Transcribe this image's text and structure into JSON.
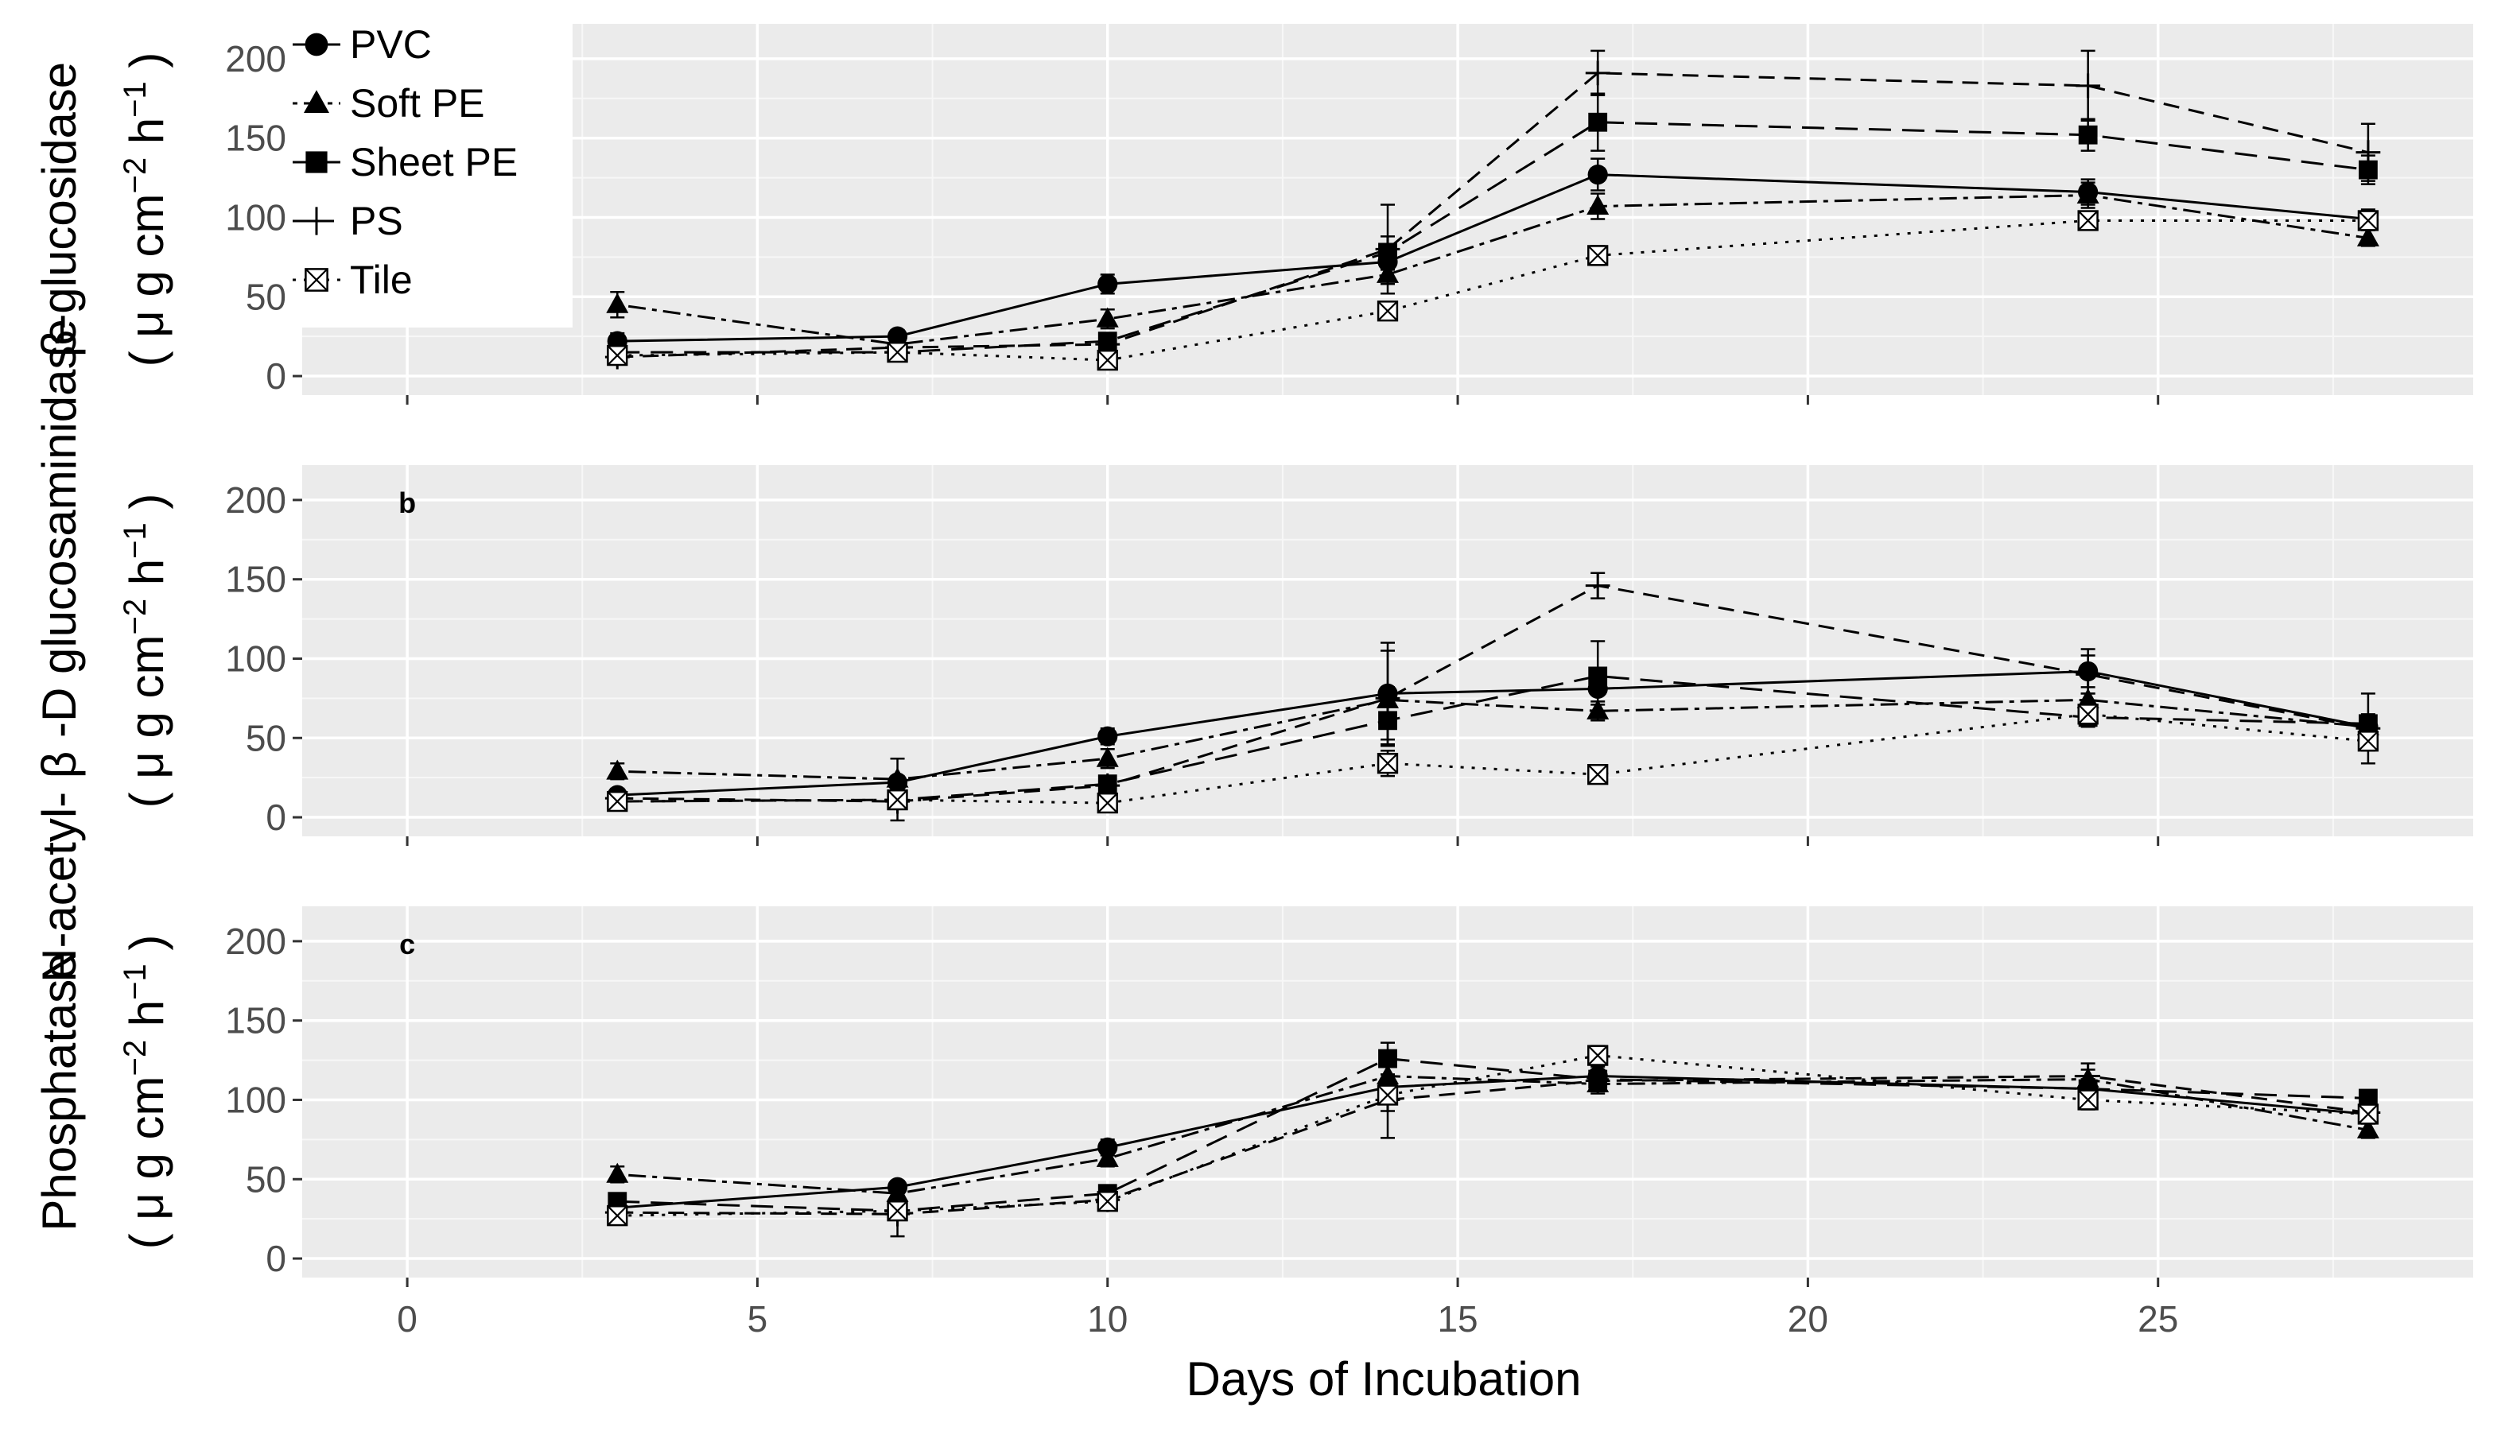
{
  "chart_data": {
    "type": "line",
    "xlabel": "Days of Incubation",
    "xlim": [
      -1.5,
      29.5
    ],
    "xticks": [
      0,
      5,
      10,
      15,
      20,
      25
    ],
    "ylim": [
      -12,
      222
    ],
    "yticks": [
      0,
      50,
      100,
      150,
      200
    ],
    "legend_position": "top-left",
    "x": [
      3,
      7,
      10,
      14,
      17,
      24,
      28
    ],
    "series_styles": [
      {
        "name": "PVC",
        "marker": "circle",
        "dash": "solid"
      },
      {
        "name": "Soft PE",
        "marker": "triangle",
        "dash": "dotted-dash"
      },
      {
        "name": "Sheet PE",
        "marker": "square",
        "dash": "long-dash"
      },
      {
        "name": "PS",
        "marker": "plus",
        "dash": "dash"
      },
      {
        "name": "Tile",
        "marker": "boxed-x",
        "dash": "dotted"
      }
    ],
    "panels": [
      {
        "ylabel_line1": "β-glucosidase",
        "ylabel_line2_prefix": "( μ g cm",
        "ylabel_sup1": "−2",
        "ylabel_mid": " h",
        "ylabel_sup2": "−1",
        "ylabel_suffix": " )",
        "tag": "",
        "series": [
          {
            "name": "PVC",
            "values": [
              22,
              25,
              58,
              72,
              127,
              116,
              99
            ],
            "err": [
              5,
              4,
              6,
              5,
              10,
              8,
              6
            ]
          },
          {
            "name": "Soft PE",
            "values": [
              45,
              20,
              36,
              64,
              107,
              114,
              87
            ],
            "err": [
              8,
              3,
              6,
              6,
              8,
              8,
              5
            ]
          },
          {
            "name": "Sheet PE",
            "values": [
              15,
              15,
              22,
              78,
              160,
              152,
              130
            ],
            "err": [
              3,
              3,
              4,
              10,
              18,
              10,
              9
            ]
          },
          {
            "name": "PS",
            "values": [
              12,
              18,
              20,
              80,
              191,
              183,
              141
            ],
            "err": [
              3,
              3,
              4,
              28,
              14,
              22,
              18
            ]
          },
          {
            "name": "Tile",
            "values": [
              13,
              15,
              10,
              41,
              76,
              98,
              98
            ],
            "err": [
              3,
              3,
              3,
              5,
              6,
              5,
              6
            ]
          }
        ]
      },
      {
        "ylabel_line1": "N-acetyl- β -D glucosaminidase",
        "ylabel_line2_prefix": "( μ g cm",
        "ylabel_sup1": "−2",
        "ylabel_mid": " h",
        "ylabel_sup2": "−1",
        "ylabel_suffix": " )",
        "tag": "b",
        "series": [
          {
            "name": "PVC",
            "values": [
              14,
              22,
              51,
              78,
              81,
              92,
              57
            ],
            "err": [
              4,
              4,
              5,
              32,
              10,
              14,
              6
            ]
          },
          {
            "name": "Soft PE",
            "values": [
              29,
              24,
              37,
              74,
              67,
              74,
              57
            ],
            "err": [
              5,
              13,
              6,
              8,
              6,
              8,
              5
            ]
          },
          {
            "name": "Sheet PE",
            "values": [
              10,
              11,
              21,
              61,
              89,
              63,
              59
            ],
            "err": [
              3,
              3,
              4,
              12,
              22,
              6,
              6
            ]
          },
          {
            "name": "PS",
            "values": [
              12,
              10,
              20,
              75,
              146,
              90,
              56
            ],
            "err": [
              3,
              12,
              4,
              30,
              8,
              12,
              22
            ]
          },
          {
            "name": "Tile",
            "values": [
              10,
              11,
              9,
              34,
              27,
              65,
              48
            ],
            "err": [
              3,
              3,
              3,
              8,
              4,
              5,
              6
            ]
          }
        ]
      },
      {
        "ylabel_line1": "Phosphatase",
        "ylabel_line2_prefix": "( μ g cm",
        "ylabel_sup1": "−2",
        "ylabel_mid": " h",
        "ylabel_sup2": "−1",
        "ylabel_suffix": " )",
        "tag": "c",
        "series": [
          {
            "name": "PVC",
            "values": [
              32,
              45,
              70,
              108,
              115,
              107,
              91
            ],
            "err": [
              5,
              4,
              5,
              8,
              6,
              6,
              6
            ]
          },
          {
            "name": "Soft PE",
            "values": [
              53,
              41,
              63,
              115,
              110,
              113,
              81
            ],
            "err": [
              5,
              4,
              5,
              12,
              6,
              6,
              5
            ]
          },
          {
            "name": "Sheet PE",
            "values": [
              36,
              30,
              41,
              126,
              113,
              107,
              101
            ],
            "err": [
              4,
              4,
              5,
              10,
              6,
              6,
              5
            ]
          },
          {
            "name": "PS",
            "values": [
              29,
              28,
              37,
              100,
              112,
              115,
              92
            ],
            "err": [
              5,
              14,
              5,
              24,
              6,
              8,
              6
            ]
          },
          {
            "name": "Tile",
            "values": [
              27,
              30,
              36,
              103,
              128,
              100,
              91
            ],
            "err": [
              4,
              4,
              4,
              10,
              6,
              6,
              6
            ]
          }
        ]
      }
    ]
  }
}
